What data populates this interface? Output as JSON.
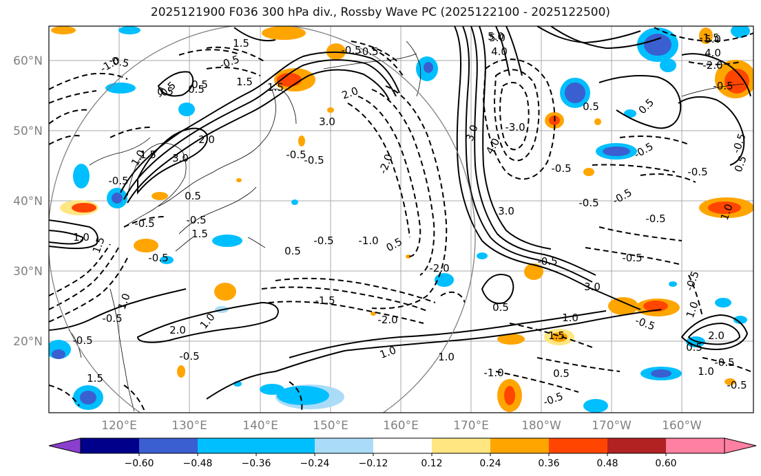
{
  "title": "2025121900 F036 300 hPa div., Rossby Wave PC (2025122100 - 2025122500)",
  "lat_labels": [
    "60°N",
    "50°N",
    "40°N",
    "30°N",
    "20°N"
  ],
  "lon_labels": [
    "120°E",
    "130°E",
    "140°E",
    "150°E",
    "160°E",
    "170°E",
    "180°W",
    "170°W",
    "160°W"
  ],
  "colorbar": {
    "ticks": [
      "−0.60",
      "−0.48",
      "−0.36",
      "−0.24",
      "−0.12",
      "0.12",
      "0.24",
      "0.36",
      "0.48",
      "0.60"
    ],
    "colors": {
      "under": "#8a3fcf",
      "neg_060": "#00008b",
      "neg_048": "#3a5fd0",
      "neg_036": "#00bfff",
      "neg_024": "#00bfff",
      "neg_012": "#aadcf7",
      "zero": "#ffffff",
      "pos_012": "#ffe680",
      "pos_024": "#ffa500",
      "pos_036": "#ff4500",
      "pos_048": "#b22222",
      "over": "#ff80a0"
    }
  },
  "contour_labels": [
    "-0.5",
    "0.5",
    "1.0",
    "-1.0",
    "1.5",
    "-1.5",
    "2.0",
    "-2.0",
    "3.0",
    "-3.0",
    "4.0",
    "5.0"
  ],
  "icons": {
    "map_frame": "map-frame",
    "range_circle": "range-circle"
  }
}
